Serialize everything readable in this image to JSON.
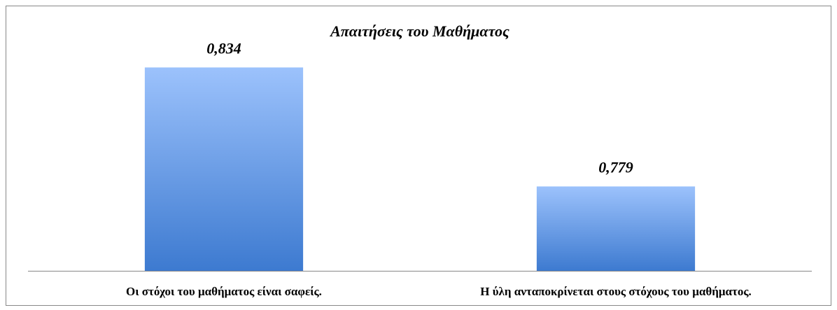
{
  "chart_data": {
    "type": "bar",
    "title": "Απαιτήσεις του Μαθήματος",
    "categories": [
      "Οι στόχοι του μαθήματος είναι σαφείς.",
      "Η ύλη ανταποκρίνεται στους στόχους του μαθήματος."
    ],
    "values": [
      0.834,
      0.779
    ],
    "value_labels": [
      "0,834",
      "0,779"
    ],
    "color": "#5b8fdf",
    "ylim": [
      0.74,
      0.86
    ],
    "grid": false
  }
}
